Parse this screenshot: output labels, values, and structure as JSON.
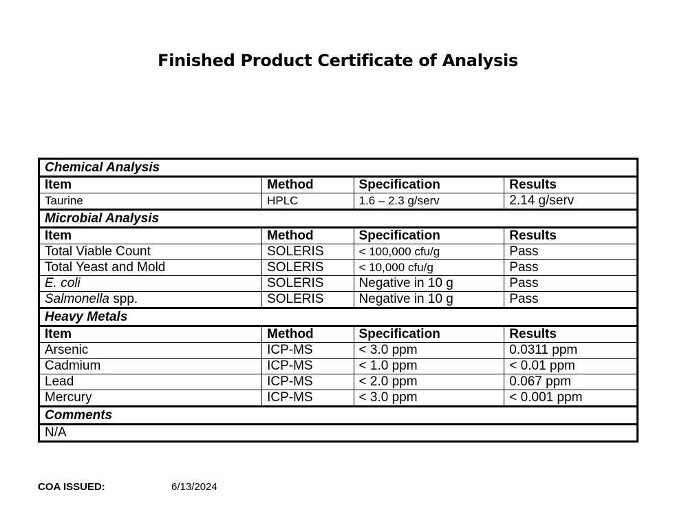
{
  "title": "Finished Product Certificate of Analysis",
  "chemical": {
    "heading": "Chemical Analysis",
    "columns": [
      "Item",
      "Method",
      "Specification",
      "Results"
    ],
    "rows": [
      {
        "item": "Taurine",
        "method": "HPLC",
        "spec": "1.6 – 2.3 g/serv",
        "result": "2.14 g/serv"
      }
    ]
  },
  "microbial": {
    "heading": "Microbial Analysis",
    "columns": [
      "Item",
      "Method",
      "Specification",
      "Results"
    ],
    "rows": [
      {
        "item": "Total Viable Count",
        "method": "SOLERIS",
        "spec": "< 100,000 cfu/g",
        "result": "Pass"
      },
      {
        "item": "Total Yeast and Mold",
        "method": "SOLERIS",
        "spec": "< 10,000 cfu/g",
        "result": "Pass"
      },
      {
        "item": "E. coli",
        "method": "SOLERIS",
        "spec": "Negative in 10 g",
        "result": "Pass"
      },
      {
        "item_italic": "Salmonella",
        "item_rest": " spp.",
        "method": "SOLERIS",
        "spec": "Negative in 10 g",
        "result": "Pass"
      }
    ]
  },
  "heavy_metals": {
    "heading": "Heavy Metals",
    "columns": [
      "Item",
      "Method",
      "Specification",
      "Results"
    ],
    "rows": [
      {
        "item": "Arsenic",
        "method": "ICP-MS",
        "spec": "< 3.0 ppm",
        "result": "0.0311 ppm"
      },
      {
        "item": "Cadmium",
        "method": "ICP-MS",
        "spec": "< 1.0 ppm",
        "result": "< 0.01 ppm"
      },
      {
        "item": "Lead",
        "method": "ICP-MS",
        "spec": "< 2.0 ppm",
        "result": "0.067 ppm"
      },
      {
        "item": "Mercury",
        "method": "ICP-MS",
        "spec": "< 3.0 ppm",
        "result": "< 0.001 ppm"
      }
    ]
  },
  "comments": {
    "heading": "Comments",
    "value": "N/A"
  },
  "footer": {
    "issued_label": "COA ISSUED:",
    "issued_date": "6/13/2024"
  }
}
